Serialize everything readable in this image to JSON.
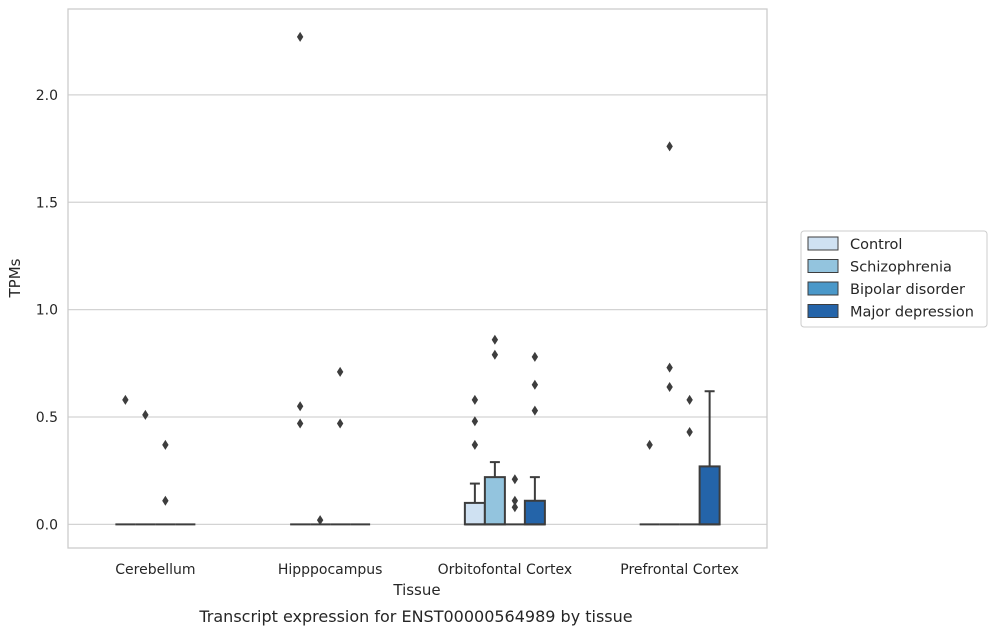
{
  "chart_data": {
    "type": "box",
    "xlabel": "Tissue",
    "ylabel": "TPMs",
    "caption": "Transcript expression for ENST00000564989 by tissue",
    "categories": [
      "Cerebellum",
      "Hipppocampus",
      "Orbitofontal Cortex",
      "Prefrontal Cortex"
    ],
    "ylim": [
      -0.11,
      2.4
    ],
    "yticks": [
      "0.0",
      "0.5",
      "1.0",
      "1.5",
      "2.0"
    ],
    "grid": "horizontal",
    "legend_position": "right",
    "colors": {
      "Control": "#cfe1f2",
      "Schizophrenia": "#93c4de",
      "Bipolar disorder": "#4a98c9",
      "Major depression": "#2464a9",
      "edge": "#3d3d3d",
      "grid": "#d3d3d3",
      "frame": "#cccccc"
    },
    "series": [
      {
        "name": "Control",
        "boxes": [
          {
            "q1": 0,
            "median": 0,
            "q3": 0,
            "whisker_low": 0,
            "whisker_high": 0,
            "outliers": [
              0.58
            ]
          },
          {
            "q1": 0,
            "median": 0,
            "q3": 0,
            "whisker_low": 0,
            "whisker_high": 0,
            "outliers": [
              2.27,
              0.55,
              0.47
            ]
          },
          {
            "q1": 0,
            "median": 0,
            "q3": 0.1,
            "whisker_low": 0,
            "whisker_high": 0.19,
            "outliers": [
              0.58,
              0.48,
              0.37
            ]
          },
          {
            "q1": 0,
            "median": 0,
            "q3": 0,
            "whisker_low": 0,
            "whisker_high": 0,
            "outliers": [
              0.37
            ]
          }
        ]
      },
      {
        "name": "Schizophrenia",
        "boxes": [
          {
            "q1": 0,
            "median": 0,
            "q3": 0,
            "whisker_low": 0,
            "whisker_high": 0,
            "outliers": [
              0.51
            ]
          },
          {
            "q1": 0,
            "median": 0,
            "q3": 0,
            "whisker_low": 0,
            "whisker_high": 0,
            "outliers": [
              0.02
            ]
          },
          {
            "q1": 0,
            "median": 0,
            "q3": 0.22,
            "whisker_low": 0,
            "whisker_high": 0.29,
            "outliers": [
              0.86,
              0.79
            ]
          },
          {
            "q1": 0,
            "median": 0,
            "q3": 0,
            "whisker_low": 0,
            "whisker_high": 0,
            "outliers": [
              1.76,
              0.73,
              0.64
            ]
          }
        ]
      },
      {
        "name": "Bipolar disorder",
        "boxes": [
          {
            "q1": 0,
            "median": 0,
            "q3": 0,
            "whisker_low": 0,
            "whisker_high": 0,
            "outliers": [
              0.37,
              0.11
            ]
          },
          {
            "q1": 0,
            "median": 0,
            "q3": 0,
            "whisker_low": 0,
            "whisker_high": 0,
            "outliers": [
              0.71,
              0.47
            ]
          },
          {
            "q1": 0,
            "median": 0,
            "q3": 0,
            "whisker_low": 0,
            "whisker_high": 0,
            "outliers": [
              0.21,
              0.11,
              0.08
            ]
          },
          {
            "q1": 0,
            "median": 0,
            "q3": 0,
            "whisker_low": 0,
            "whisker_high": 0,
            "outliers": [
              0.58,
              0.43
            ]
          }
        ]
      },
      {
        "name": "Major depression",
        "boxes": [
          {
            "q1": 0,
            "median": 0,
            "q3": 0,
            "whisker_low": 0,
            "whisker_high": 0,
            "outliers": []
          },
          {
            "q1": 0,
            "median": 0,
            "q3": 0,
            "whisker_low": 0,
            "whisker_high": 0,
            "outliers": []
          },
          {
            "q1": 0,
            "median": 0,
            "q3": 0.11,
            "whisker_low": 0,
            "whisker_high": 0.22,
            "outliers": [
              0.78,
              0.65,
              0.53
            ]
          },
          {
            "q1": 0,
            "median": 0,
            "q3": 0.27,
            "whisker_low": 0,
            "whisker_high": 0.62,
            "outliers": []
          }
        ]
      }
    ]
  }
}
